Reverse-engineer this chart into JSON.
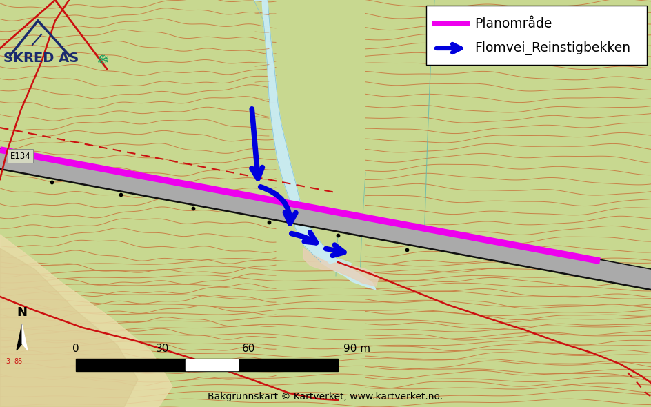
{
  "fig_width": 9.44,
  "fig_height": 5.9,
  "dpi": 100,
  "bg_color": "#c8d890",
  "road_color": "#aaaaaa",
  "plan_color": "#ee00ee",
  "flood_color": "#0000dd",
  "contour_color_brown": "#c87840",
  "contour_color_cyan": "#60b8b0",
  "water_color": "#c8ecf4",
  "water_edge_color": "#80c0d0",
  "flat_color": "#e8dca8",
  "flat2_color": "#d8c890",
  "legend_line1": "Planområde",
  "legend_line2": "Flomvei_Reinstigbekken",
  "scale_label": "90 m",
  "north_label": "N",
  "credit_text": "Bakgrunnskart © Kartverket, www.kartverket.no.",
  "e134_label": "E134",
  "skred_label": "SKRED AS",
  "logo_color_dark": "#1a2a6e",
  "logo_color_green": "#20a060",
  "red_line_color": "#cc1010",
  "xlim": [
    0,
    944
  ],
  "ylim": [
    590,
    0
  ]
}
